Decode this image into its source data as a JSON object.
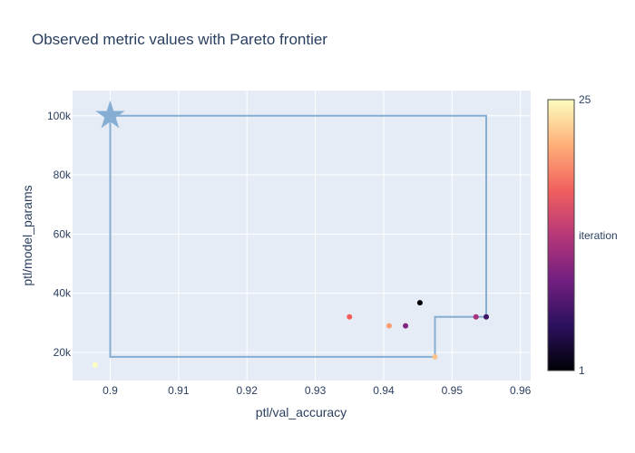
{
  "chart_data": {
    "type": "scatter",
    "title": "Observed metric values with Pareto frontier",
    "xlabel": "ptl/val_accuracy",
    "ylabel": "ptl/model_params",
    "xlim": [
      0.8945,
      0.9615
    ],
    "ylim": [
      10500,
      108500
    ],
    "x_ticks": [
      {
        "value": 0.9,
        "label": "0.9"
      },
      {
        "value": 0.91,
        "label": "0.91"
      },
      {
        "value": 0.92,
        "label": "0.92"
      },
      {
        "value": 0.93,
        "label": "0.93"
      },
      {
        "value": 0.94,
        "label": "0.94"
      },
      {
        "value": 0.95,
        "label": "0.95"
      },
      {
        "value": 0.96,
        "label": "0.96"
      }
    ],
    "y_ticks": [
      {
        "value": 20000,
        "label": "20k"
      },
      {
        "value": 40000,
        "label": "40k"
      },
      {
        "value": 60000,
        "label": "60k"
      },
      {
        "value": 80000,
        "label": "80k"
      },
      {
        "value": 100000,
        "label": "100k"
      }
    ],
    "grid": true,
    "colorbar": {
      "title": "iteration",
      "min": 1,
      "max": 25,
      "min_label": "1",
      "max_label": "25",
      "colorscale": [
        "#000004",
        "#2c115f",
        "#721f81",
        "#b73779",
        "#f1605d",
        "#feb078",
        "#fcfdbf"
      ]
    },
    "reference_point": {
      "x": 0.9,
      "y": 100000,
      "marker": "star",
      "color": "#86aed3"
    },
    "frontier": {
      "color": "#86aed3",
      "points": [
        {
          "x": 0.9,
          "y": 100000
        },
        {
          "x": 0.9,
          "y": 18500
        },
        {
          "x": 0.9475,
          "y": 18500
        },
        {
          "x": 0.9475,
          "y": 32000
        },
        {
          "x": 0.955,
          "y": 32000
        },
        {
          "x": 0.955,
          "y": 100000
        },
        {
          "x": 0.9,
          "y": 100000
        }
      ]
    },
    "points": [
      {
        "x": 0.8978,
        "y": 15800,
        "iteration": 25
      },
      {
        "x": 0.935,
        "y": 32000,
        "iteration": 17
      },
      {
        "x": 0.9408,
        "y": 29000,
        "iteration": 20
      },
      {
        "x": 0.9432,
        "y": 29000,
        "iteration": 10
      },
      {
        "x": 0.9453,
        "y": 36800,
        "iteration": 1
      },
      {
        "x": 0.9475,
        "y": 18500,
        "iteration": 22
      },
      {
        "x": 0.9535,
        "y": 32000,
        "iteration": 12
      },
      {
        "x": 0.955,
        "y": 32000,
        "iteration": 6
      }
    ]
  }
}
